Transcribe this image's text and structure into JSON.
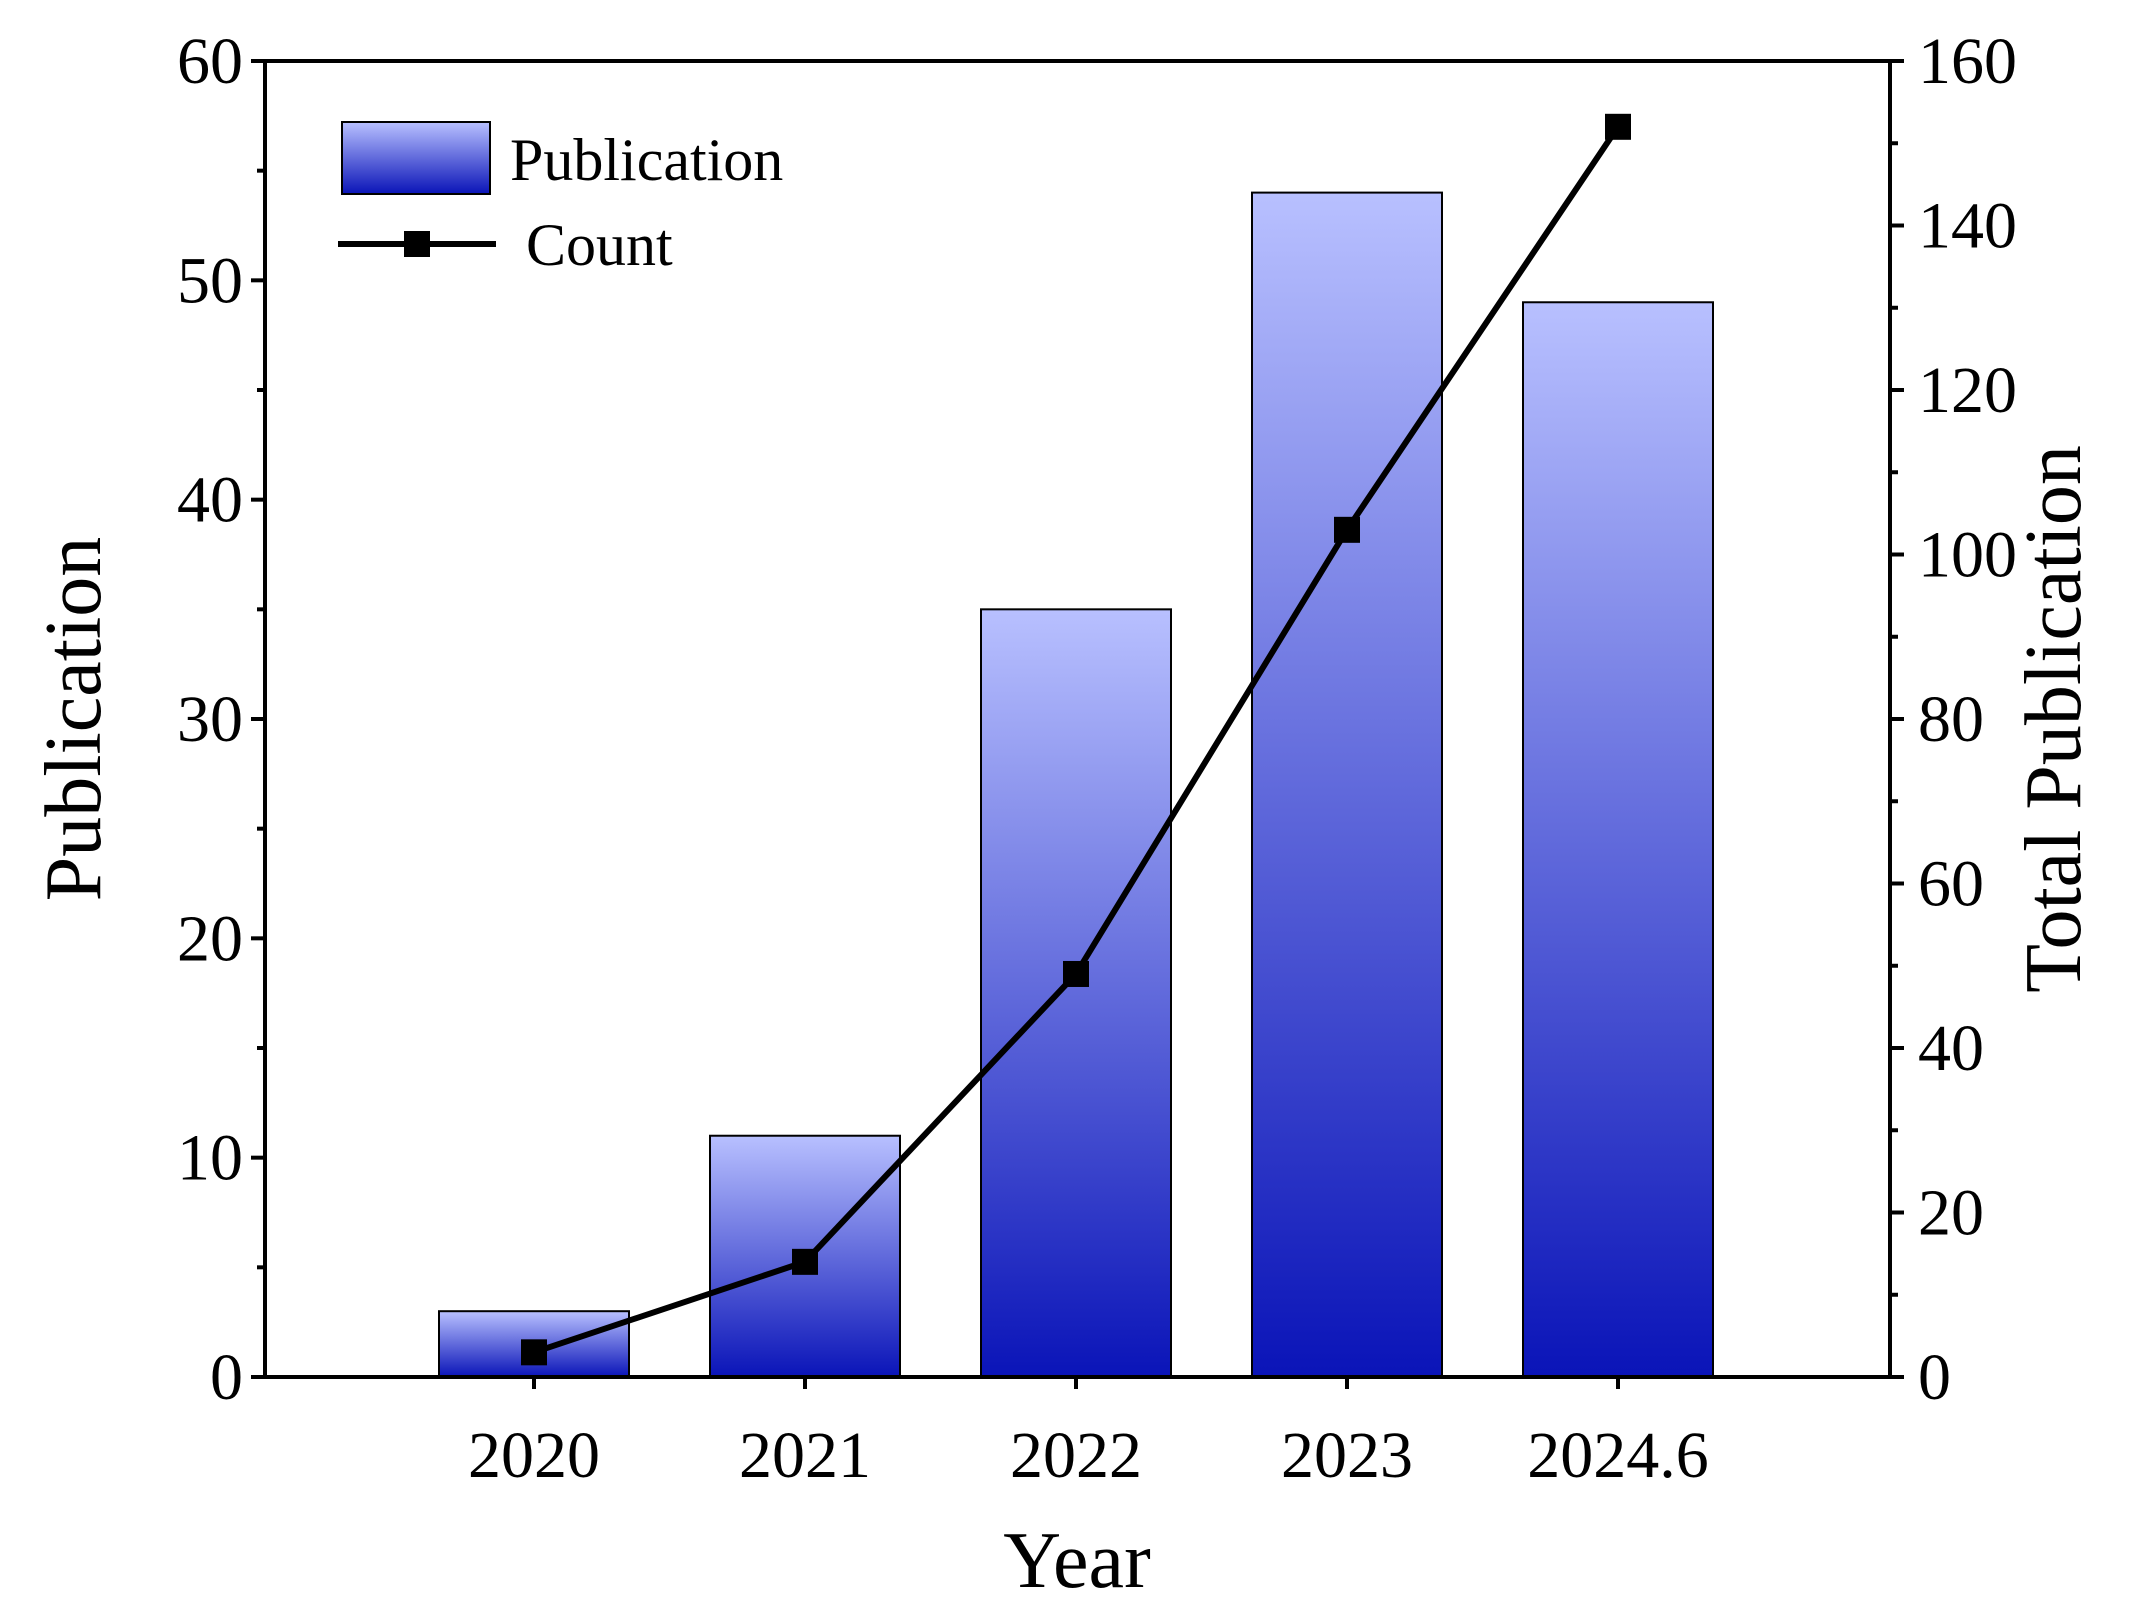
{
  "chart_data": {
    "type": "bar",
    "xlabel": "Year",
    "ylabel": "Publication",
    "y2label": "Total Publication",
    "categories": [
      "2020",
      "2021",
      "2022",
      "2023",
      "2024.6"
    ],
    "ylim": [
      0,
      60
    ],
    "y2lim": [
      0,
      160
    ],
    "yticks": [
      0,
      10,
      20,
      30,
      40,
      50,
      60
    ],
    "y2ticks": [
      0,
      20,
      40,
      60,
      80,
      100,
      120,
      140,
      160
    ],
    "series": [
      {
        "name": "Publication",
        "type": "bar",
        "axis": "left",
        "values": [
          3,
          11,
          35,
          54,
          49
        ]
      },
      {
        "name": "Count",
        "type": "line",
        "axis": "right",
        "values": [
          3,
          14,
          49,
          103,
          152
        ]
      }
    ],
    "legend": "top-left",
    "colors": {
      "bar_top": "#b8c0ff",
      "bar_bottom": "#0a14b8",
      "line": "#000000"
    }
  }
}
